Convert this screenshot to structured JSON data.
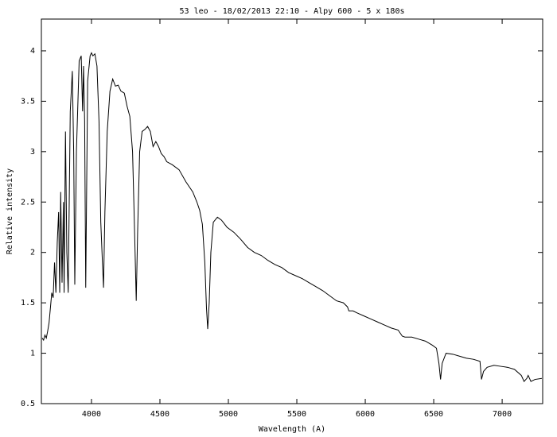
{
  "chart_data": {
    "type": "line",
    "title": "53 leo - 18/02/2013 22:10 - Alpy 600 - 5 x 180s",
    "x_label": "Wavelength (A)",
    "y_label": "Relative intensity",
    "xlim": [
      3634,
      7296
    ],
    "ylim": [
      0.5,
      4.315
    ],
    "xticks": [
      4000,
      4500,
      5000,
      5500,
      6000,
      6500,
      7000
    ],
    "yticks": [
      0.5,
      1,
      1.5,
      2,
      2.5,
      3,
      3.5,
      4
    ],
    "series": [
      {
        "color": "#000000",
        "x": [
          3640,
          3650,
          3660,
          3670,
          3680,
          3690,
          3700,
          3710,
          3720,
          3730,
          3740,
          3750,
          3760,
          3768,
          3775,
          3785,
          3795,
          3800,
          3810,
          3820,
          3830,
          3845,
          3860,
          3870,
          3878,
          3890,
          3910,
          3925,
          3935,
          3942,
          3950,
          3958,
          3972,
          3990,
          4000,
          4010,
          4025,
          4040,
          4055,
          4068,
          4080,
          4088,
          4098,
          4115,
          4135,
          4155,
          4175,
          4195,
          4215,
          4240,
          4260,
          4280,
          4300,
          4315,
          4327,
          4337,
          4352,
          4370,
          4390,
          4410,
          4430,
          4450,
          4470,
          4490,
          4510,
          4530,
          4550,
          4590,
          4640,
          4690,
          4740,
          4770,
          4790,
          4810,
          4828,
          4840,
          4849,
          4860,
          4872,
          4890,
          4920,
          4950,
          4990,
          5040,
          5090,
          5140,
          5190,
          5240,
          5290,
          5340,
          5390,
          5440,
          5490,
          5540,
          5590,
          5640,
          5690,
          5740,
          5790,
          5840,
          5870,
          5880,
          5910,
          5940,
          5990,
          6040,
          6090,
          6140,
          6190,
          6240,
          6270,
          6290,
          6340,
          6390,
          6440,
          6490,
          6520,
          6538,
          6550,
          6562,
          6590,
          6640,
          6690,
          6740,
          6790,
          6838,
          6849,
          6864,
          6890,
          6940,
          6990,
          7040,
          7090,
          7140,
          7160,
          7180,
          7190,
          7210,
          7240,
          7290
        ],
        "values": [
          1.15,
          1.13,
          1.18,
          1.15,
          1.22,
          1.3,
          1.45,
          1.6,
          1.55,
          1.9,
          1.6,
          2.1,
          2.4,
          1.6,
          2.6,
          1.7,
          2.5,
          1.6,
          3.2,
          2.0,
          1.6,
          3.4,
          3.8,
          3.0,
          1.68,
          3.0,
          3.9,
          3.95,
          3.4,
          3.85,
          3.3,
          1.65,
          3.7,
          3.95,
          3.98,
          3.95,
          3.97,
          3.85,
          3.3,
          2.3,
          1.9,
          1.65,
          2.4,
          3.2,
          3.6,
          3.72,
          3.65,
          3.66,
          3.6,
          3.58,
          3.45,
          3.35,
          3.0,
          2.2,
          1.52,
          2.2,
          3.0,
          3.2,
          3.22,
          3.25,
          3.2,
          3.05,
          3.1,
          3.05,
          2.98,
          2.95,
          2.9,
          2.87,
          2.82,
          2.7,
          2.6,
          2.5,
          2.42,
          2.28,
          1.9,
          1.45,
          1.24,
          1.5,
          2.0,
          2.3,
          2.35,
          2.32,
          2.25,
          2.2,
          2.13,
          2.05,
          2.0,
          1.97,
          1.92,
          1.88,
          1.85,
          1.8,
          1.77,
          1.74,
          1.7,
          1.66,
          1.62,
          1.57,
          1.52,
          1.5,
          1.46,
          1.42,
          1.42,
          1.4,
          1.37,
          1.34,
          1.31,
          1.28,
          1.25,
          1.23,
          1.17,
          1.16,
          1.16,
          1.14,
          1.12,
          1.08,
          1.05,
          0.9,
          0.74,
          0.9,
          1.0,
          0.99,
          0.97,
          0.95,
          0.94,
          0.92,
          0.74,
          0.82,
          0.86,
          0.88,
          0.87,
          0.86,
          0.84,
          0.78,
          0.72,
          0.75,
          0.78,
          0.72,
          0.74,
          0.75
        ]
      }
    ]
  }
}
